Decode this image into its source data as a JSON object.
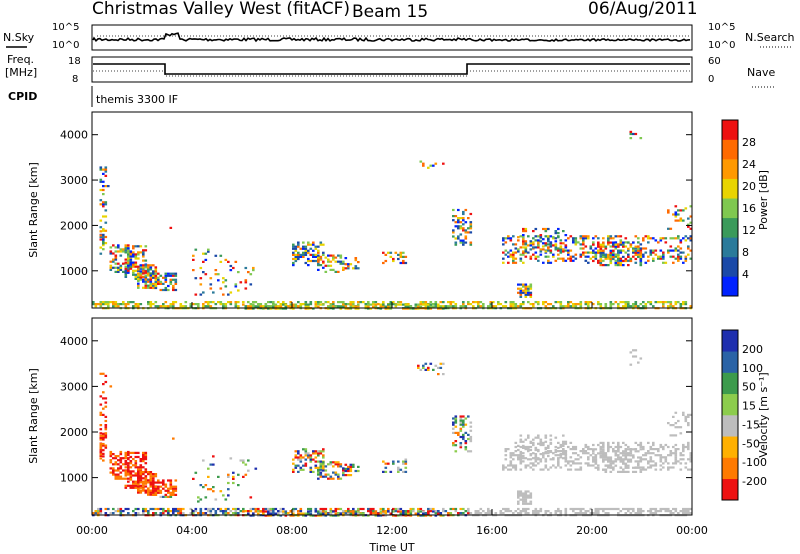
{
  "header": {
    "station": "Christmas Valley West (fitACF)",
    "beam": "Beam 15",
    "date": "06/Aug/2011"
  },
  "panels": {
    "nsky_label": "N.Sky",
    "nsky_ticks": [
      "10^5",
      "10^0"
    ],
    "nsearch_label": "N.Search",
    "nsearch_ticks": [
      "10^5",
      "10^0"
    ],
    "freq_label": "Freq.",
    "freq_unit": "[MHz]",
    "freq_ticks": [
      "18",
      "8"
    ],
    "nave_label": "Nave",
    "nave_ticks": [
      "60",
      "0"
    ],
    "cpid_label": "CPID",
    "cpid_value": "themis 3300 IF"
  },
  "chart_data": [
    {
      "type": "heatmap",
      "name": "power",
      "ylabel": "Slant Range [km]",
      "yticks": [
        "4000",
        "3000",
        "2000",
        "1000"
      ],
      "colorbar_label": "Power [dB]",
      "colorbar_ticks": [
        "28",
        "24",
        "20",
        "16",
        "12",
        "8",
        "4"
      ],
      "colors": [
        "#0022ff",
        "#1a49a8",
        "#2a7a9a",
        "#3a9a5a",
        "#7fc850",
        "#e8d400",
        "#ff9900",
        "#ff6a00",
        "#ee1111"
      ],
      "ylim": [
        180,
        4500
      ]
    },
    {
      "type": "heatmap",
      "name": "velocity",
      "ylabel": "Slant Range [km]",
      "yticks": [
        "4000",
        "3000",
        "2000",
        "1000"
      ],
      "colorbar_label": "Velocity [m s⁻¹]",
      "colorbar_ticks": [
        "200",
        "100",
        "50",
        "15",
        "-15",
        "-50",
        "-100",
        "-200"
      ],
      "colors": [
        "#1f2fae",
        "#2a63a6",
        "#3c9b4c",
        "#8ccc4c",
        "#bdbdbd",
        "#ffb000",
        "#ff7a00",
        "#ee1111"
      ],
      "ylim": [
        180,
        4500
      ]
    }
  ],
  "xaxis": {
    "label": "Time UT",
    "ticks": [
      "00:00",
      "04:00",
      "08:00",
      "12:00",
      "16:00",
      "20:00",
      "00:00"
    ]
  }
}
